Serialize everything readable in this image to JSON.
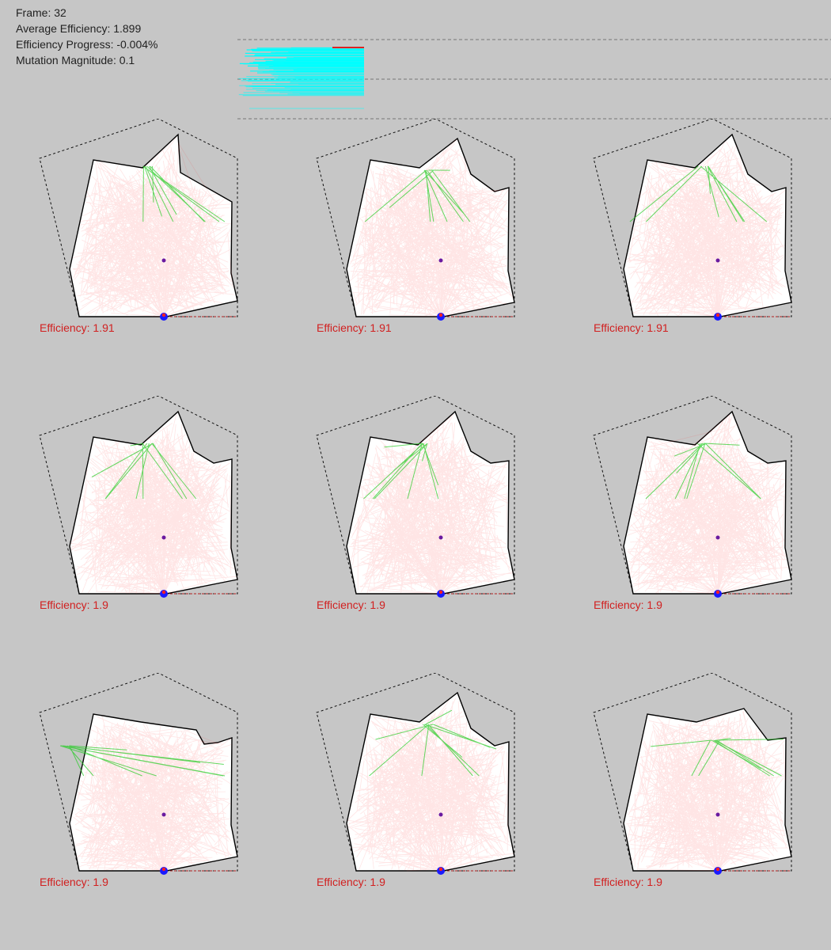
{
  "stats": {
    "frame_label": "Frame: 32",
    "avg_label": "Average Efficiency: 1.899",
    "progress_label": "Efficiency Progress: -0.004%",
    "mutation_label": "Mutation Magnitude: 0.1"
  },
  "colors": {
    "background": "#c6c6c6",
    "shape_fill": "#ffffff",
    "ray": "#ff3333",
    "bounce_ray": "#22cc22",
    "history_bars": "#00ffff",
    "efficiency_text": "#d12020",
    "source": "#1a1aff",
    "center": "#6a1aa0"
  },
  "history": {
    "generations": 32,
    "best_line_color": "#dd2222"
  },
  "grid": {
    "columns": 3,
    "rows": 3,
    "cells": [
      {
        "efficiency_label": "Efficiency: 1.91",
        "efficiency": 1.91
      },
      {
        "efficiency_label": "Efficiency: 1.91",
        "efficiency": 1.91
      },
      {
        "efficiency_label": "Efficiency: 1.91",
        "efficiency": 1.91
      },
      {
        "efficiency_label": "Efficiency: 1.9",
        "efficiency": 1.9
      },
      {
        "efficiency_label": "Efficiency: 1.9",
        "efficiency": 1.9
      },
      {
        "efficiency_label": "Efficiency: 1.9",
        "efficiency": 1.9
      },
      {
        "efficiency_label": "Efficiency: 1.9",
        "efficiency": 1.9
      },
      {
        "efficiency_label": "Efficiency: 1.9",
        "efficiency": 1.9
      },
      {
        "efficiency_label": "Efficiency: 1.9",
        "efficiency": 1.9
      }
    ]
  }
}
